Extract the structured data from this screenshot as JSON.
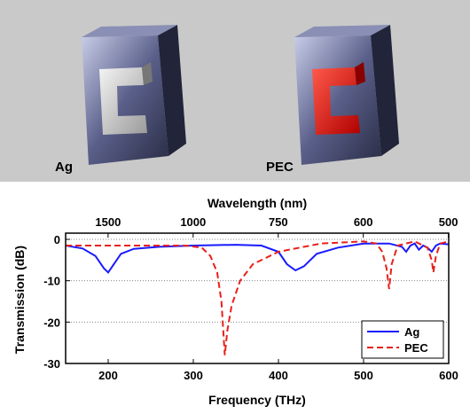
{
  "figure": {
    "panel_labels": [
      "Ag",
      "PEC"
    ]
  },
  "chart_data": {
    "type": "line",
    "x_label": "Frequency (THz)",
    "x2_label": "Wavelength (nm)",
    "y_label": "Transmission (dB)",
    "xlim": [
      150,
      600
    ],
    "xticks": [
      200,
      300,
      400,
      500,
      600
    ],
    "x2ticks": [
      1500,
      1000,
      750,
      600,
      500
    ],
    "ylim": [
      -30,
      1.5
    ],
    "yticks": [
      0,
      -10,
      -20,
      -30
    ],
    "grid": true,
    "legend": "lower right",
    "series": [
      {
        "name": "Ag",
        "color": "#1a1aff",
        "dash": false,
        "x": [
          150,
          170,
          185,
          195,
          200,
          205,
          215,
          230,
          260,
          300,
          350,
          380,
          400,
          410,
          420,
          430,
          445,
          470,
          500,
          530,
          545,
          550,
          555,
          560,
          565,
          570,
          575,
          580,
          585,
          590,
          600
        ],
        "values": [
          -1.5,
          -2.2,
          -4,
          -7,
          -8,
          -6.5,
          -3.5,
          -2.3,
          -1.8,
          -1.5,
          -1.3,
          -1.5,
          -3,
          -6,
          -7.5,
          -6.5,
          -3.5,
          -2,
          -1,
          -1,
          -1.8,
          -3,
          -1.5,
          -1,
          -2.5,
          -1.5,
          -2,
          -3,
          -1.5,
          -1,
          -1.2
        ]
      },
      {
        "name": "PEC",
        "color": "#e8201a",
        "dash": true,
        "x": [
          150,
          200,
          250,
          290,
          310,
          320,
          328,
          333,
          337,
          340,
          345,
          355,
          370,
          400,
          450,
          500,
          515,
          522,
          527,
          530,
          533,
          540,
          560,
          575,
          580,
          582,
          585,
          590,
          600
        ],
        "values": [
          -1.5,
          -1.5,
          -1.5,
          -1.5,
          -2,
          -4,
          -8,
          -15,
          -28,
          -22,
          -16,
          -10,
          -6,
          -3,
          -1,
          -0.5,
          -1,
          -3,
          -7,
          -12,
          -6,
          -1.5,
          -0.5,
          -2,
          -5,
          -8,
          -4,
          -1,
          -0.5
        ]
      }
    ]
  }
}
